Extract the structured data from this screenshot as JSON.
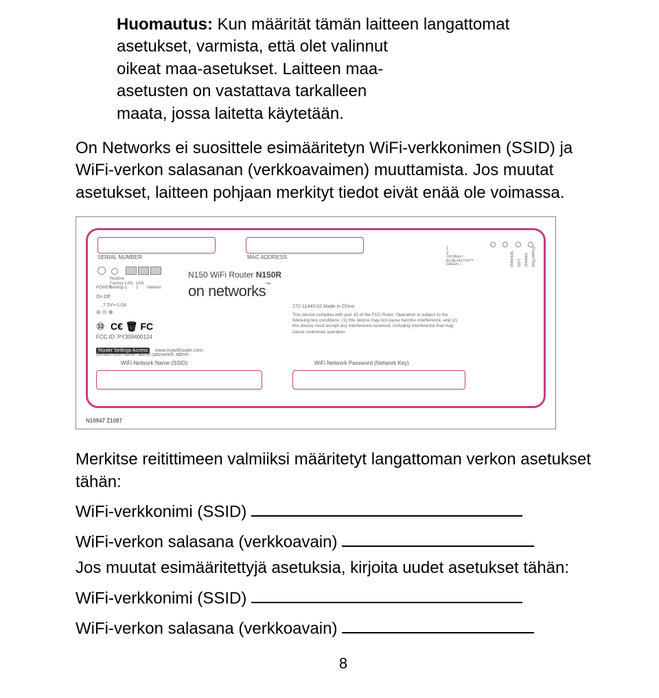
{
  "note": {
    "label": "Huomautus:",
    "line1_rest": " Kun määrität tämän laitteen langattomat",
    "line2": "asetukset, varmista, että olet valinnut",
    "line3": "oikeat maa-asetukset. Laitteen maa-",
    "line4": "asetusten on vastattava tarkalleen",
    "line5": "maata, jossa laitetta käytetään."
  },
  "para1": "On Networks ei suosittele esimääritetyn WiFi-verkkonimen (SSID) ja WiFi-verkon salasanan (verkkoavaimen) muuttamista. Jos muutat asetukset, laitteen pohjaan merkityt tiedot eivät enää ole voimassa.",
  "label_image": {
    "border_color": "#c04080",
    "serial_label": "SERIAL NUMBER",
    "mac_label": "MAC ADDRESS",
    "product": "N150 WiFi Router N150R",
    "brand": "on networks",
    "router_settings": "Router Settings Access",
    "router_url": "www.mywifirouter.com",
    "default_cred": "Default user name: admin    password: admin",
    "ssid_label": "WiFi Network Name (SSID)",
    "pass_label": "WiFi Network Password (Network Key)",
    "fcc": "FCC ID: PY309400124",
    "made_in": "272-11440-02  Made in China",
    "fcc_text": "This device complies with part 15 of the FCC Rules. Operation is subject to the following two conditions: (1) this device may not cause harmful interference, and (2) this device must accept any interference received, including interference that may cause undesired operation.",
    "side_labels": {
      "power": "POWER",
      "restore": "Restore Factory Settings",
      "lan1": "LAN 1",
      "lan2": "LAN 2",
      "internet": "Internet",
      "volts": "7.5V⎓1.0A",
      "onoff": "On Off"
    },
    "led_labels": {
      "wireless": "Wireless",
      "lan": "LAN",
      "internet": "Internet",
      "power": "Power/Test",
      "n1": "1",
      "n2": "2",
      "speed": "100 Mbps / BLINK=ACTIVITY",
      "green": "GREEN —"
    },
    "n_code": "N10947 Z1087",
    "ten": "⑩"
  },
  "instr1": "Merkitse reitittimeen valmiiksi määritetyt langattoman verkon asetukset tähän:",
  "instr1_fields": {
    "ssid": "WiFi-verkkonimi (SSID)",
    "pass": "WiFi-verkon salasana (verkkoavain)"
  },
  "instr2": "Jos muutat esimääritettyjä asetuksia, kirjoita uudet asetukset tähän:",
  "instr2_fields": {
    "ssid": "WiFi-verkkonimi (SSID)",
    "pass": "WiFi-verkon salasana (verkkoavain)"
  },
  "page_number": "8",
  "underline_widths": {
    "ssid": "395px",
    "pass": "280px"
  }
}
